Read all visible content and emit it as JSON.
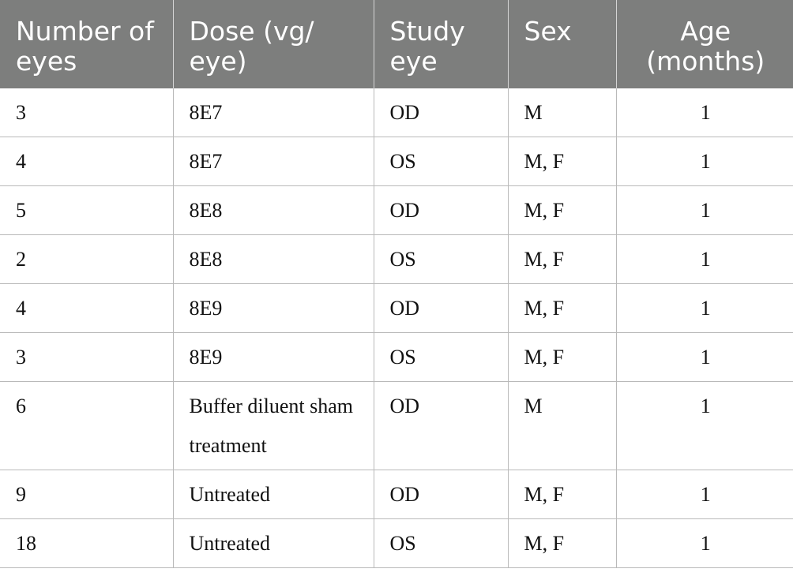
{
  "table": {
    "headers": [
      "Number of eyes",
      "Dose (vg/ eye)",
      "Study eye",
      "Sex",
      "Age (months)"
    ],
    "rows": [
      [
        "3",
        "8E7",
        "OD",
        "M",
        "1"
      ],
      [
        "4",
        "8E7",
        "OS",
        "M, F",
        "1"
      ],
      [
        "5",
        "8E8",
        "OD",
        "M, F",
        "1"
      ],
      [
        "2",
        "8E8",
        "OS",
        "M, F",
        "1"
      ],
      [
        "4",
        "8E9",
        "OD",
        "M, F",
        "1"
      ],
      [
        "3",
        "8E9",
        "OS",
        "M, F",
        "1"
      ],
      [
        "6",
        "Buffer diluent sham treatment",
        "OD",
        "M",
        "1"
      ],
      [
        "9",
        "Untreated",
        "OD",
        "M, F",
        "1"
      ],
      [
        "18",
        "Untreated",
        "OS",
        "M, F",
        "1"
      ]
    ]
  }
}
